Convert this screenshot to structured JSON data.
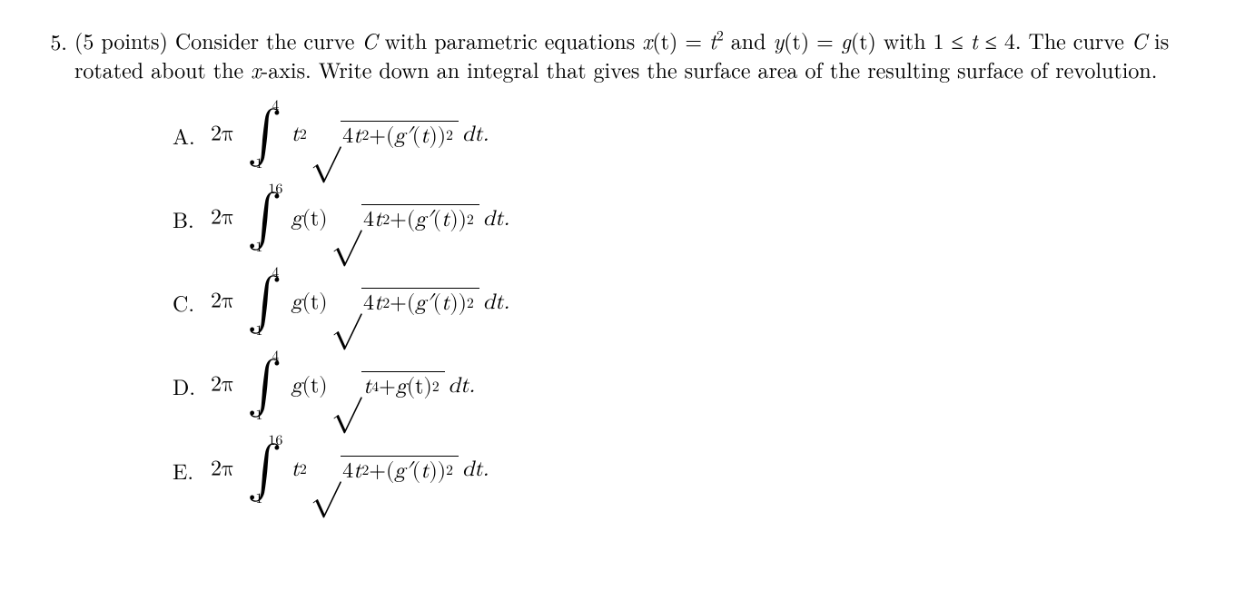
{
  "problem": {
    "number": "5.",
    "points_prefix": "(5 points)",
    "stem_parts": {
      "p1": "  Consider the curve ",
      "C": "C",
      "p2": " with parametric equations ",
      "xt": "x",
      "paren_t": "(t)",
      "eq": " = ",
      "t2": "t",
      "sup2": "2",
      "and": " and ",
      "yt": "y",
      "eq2": " = ",
      "gt": "g",
      "p3": " with 1 ≤ ",
      "tvar": "t",
      "p4": " ≤ 4.  The curve ",
      "p5": " is rotated about the ",
      "xaxis": "x",
      "p6": "-axis.  Write down an integral that gives the surface area of the resulting surface of revolution."
    }
  },
  "symbols": {
    "twopi": "2π",
    "intsign": "∫",
    "surd": "√",
    "dt": " dt.",
    "plus": " + ",
    "g": "g",
    "gp": "g′",
    "t": "t",
    "open": "(",
    "close": ")",
    "tparen": "(t)",
    "lp": "(",
    "rp": ")"
  },
  "choices": {
    "A": {
      "label": "A.",
      "lower": "1",
      "upper": "4",
      "factor": "t2"
    },
    "B": {
      "label": "B.",
      "lower": "1",
      "upper": "16",
      "factor": "g"
    },
    "C": {
      "label": "C.",
      "lower": "1",
      "upper": "4",
      "factor": "g"
    },
    "D": {
      "label": "D.",
      "lower": "1",
      "upper": "4",
      "factor": "g",
      "alt_radicand": true
    },
    "E": {
      "label": "E.",
      "lower": "1",
      "upper": "16",
      "factor": "t2"
    }
  },
  "strings": {
    "four": "4",
    "two": "2",
    "t4": "4"
  }
}
